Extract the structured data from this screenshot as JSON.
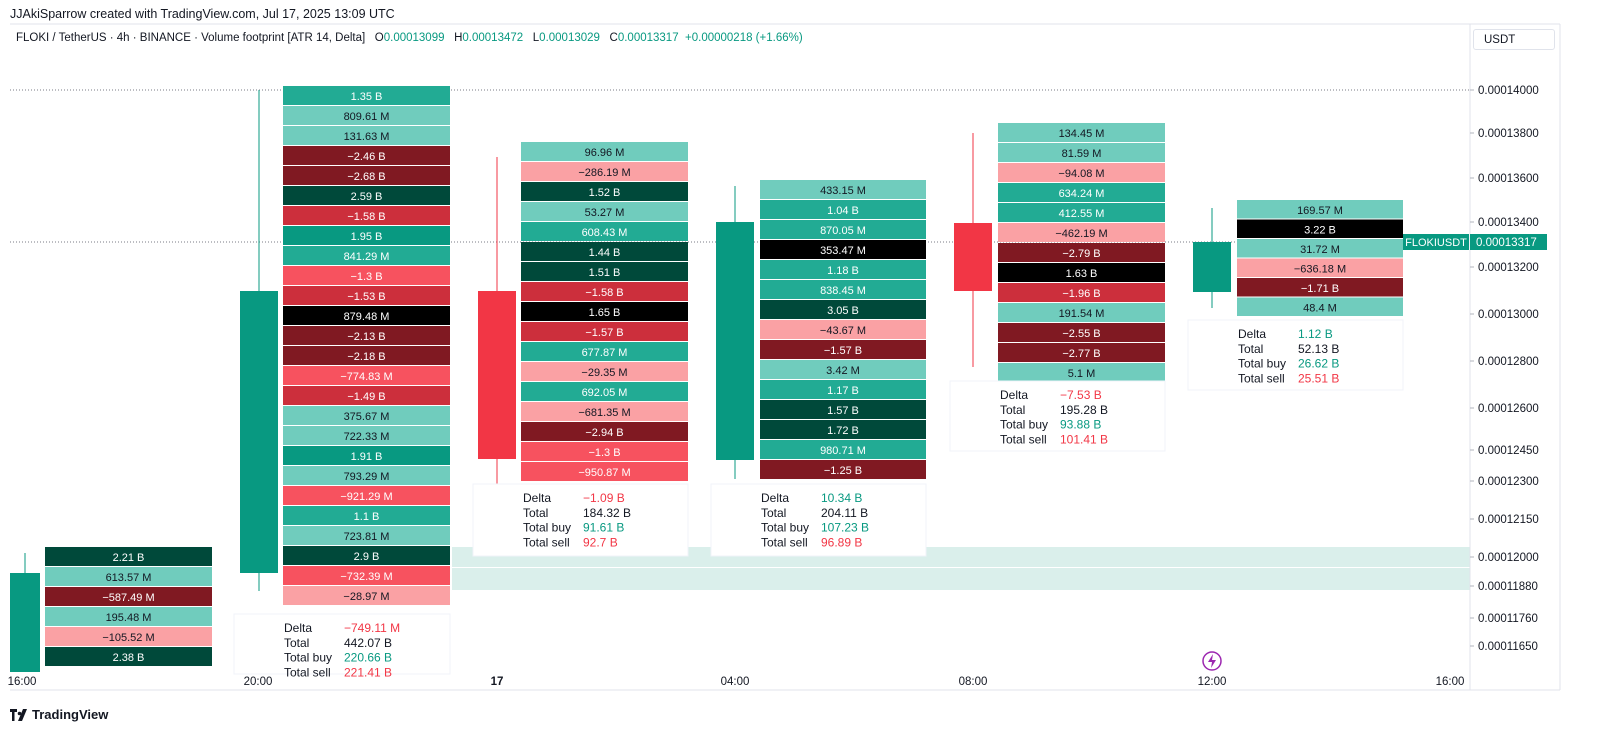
{
  "header": {
    "attribution": "JJAkiSparrow created with TradingView.com, Jul 17, 2025 13:09 UTC"
  },
  "legend": {
    "symbol": "FLOKI / TetherUS · 4h · BINANCE · Volume footprint [ATR 14, Delta]",
    "o_label": "O",
    "o": "0.00013099",
    "h_label": "H",
    "h": "0.00013472",
    "l_label": "L",
    "l": "0.00013029",
    "c_label": "C",
    "c": "0.00013317",
    "change": "+0.00000218 (+1.66%)"
  },
  "unit_selector": "USDT",
  "footer": {
    "logo": "TradingView"
  },
  "colors": {
    "up": "#089981",
    "down": "#f23645",
    "pos3": "#00493a",
    "pos2": "#089981",
    "pos1": "#22ab94",
    "pos0": "#70ccbd",
    "neg3": "#801922",
    "neg2": "#cc2f3c",
    "neg1": "#f7525f",
    "neg0": "#faa1a4",
    "poc": "#000000",
    "zone": "#d6ede9"
  },
  "chart_data": {
    "type": "footprint",
    "symbol": "FLOKIUSDT",
    "last_price": "0.00013317",
    "y_ticks": [
      "0.00014000",
      "0.00013800",
      "0.00013600",
      "0.00013400",
      "0.00013200",
      "0.00013000",
      "0.00012800",
      "0.00012600",
      "0.00012450",
      "0.00012300",
      "0.00012150",
      "0.00012000",
      "0.00011880",
      "0.00011760",
      "0.00011650"
    ],
    "x_ticks": [
      "16:00",
      "20:00",
      "17",
      "04:00",
      "08:00",
      "12:00",
      "16:00"
    ],
    "candles": [
      {
        "time": "16:00",
        "dir": "up"
      },
      {
        "time": "20:00",
        "dir": "up"
      },
      {
        "time": "00:00",
        "dir": "down"
      },
      {
        "time": "04:00",
        "dir": "up"
      },
      {
        "time": "08:00",
        "dir": "down"
      },
      {
        "time": "12:00",
        "dir": "up"
      }
    ],
    "footprints": [
      {
        "candle": "16:00",
        "rows": [
          [
            "2.21 B",
            "pos3"
          ],
          [
            "613.57 M",
            "pos0"
          ],
          [
            "−587.49 M",
            "neg3"
          ],
          [
            "195.48 M",
            "pos0"
          ],
          [
            "−105.52 M",
            "neg0"
          ],
          [
            "2.38 B",
            "pos3"
          ]
        ],
        "summary": null
      },
      {
        "candle": "20:00",
        "rows": [
          [
            "1.35 B",
            "pos1"
          ],
          [
            "809.61 M",
            "pos0"
          ],
          [
            "131.63 M",
            "pos0"
          ],
          [
            "−2.46 B",
            "neg3"
          ],
          [
            "−2.68 B",
            "neg3"
          ],
          [
            "2.59 B",
            "pos3"
          ],
          [
            "−1.58 B",
            "neg2"
          ],
          [
            "1.95 B",
            "pos2"
          ],
          [
            "841.29 M",
            "pos1"
          ],
          [
            "−1.3 B",
            "neg1"
          ],
          [
            "−1.53 B",
            "neg2"
          ],
          [
            "879.48 M",
            "poc"
          ],
          [
            "−2.13 B",
            "neg3"
          ],
          [
            "−2.18 B",
            "neg3"
          ],
          [
            "−774.83 M",
            "neg1"
          ],
          [
            "−1.49 B",
            "neg2"
          ],
          [
            "375.67 M",
            "pos0"
          ],
          [
            "722.33 M",
            "pos0"
          ],
          [
            "1.91 B",
            "pos2"
          ],
          [
            "793.29 M",
            "pos0"
          ],
          [
            "−921.29 M",
            "neg1"
          ],
          [
            "1.1 B",
            "pos1"
          ],
          [
            "723.81 M",
            "pos0"
          ],
          [
            "2.9 B",
            "pos3"
          ],
          [
            "−732.39 M",
            "neg1"
          ],
          [
            "−28.97 M",
            "neg0"
          ]
        ],
        "summary": {
          "delta": "−749.11 M",
          "total": "442.07 B",
          "buy": "220.66 B",
          "sell": "221.41 B"
        }
      },
      {
        "candle": "00:00",
        "rows": [
          [
            "96.96 M",
            "pos0"
          ],
          [
            "−286.19 M",
            "neg0"
          ],
          [
            "1.52 B",
            "pos3"
          ],
          [
            "53.27 M",
            "pos0"
          ],
          [
            "608.43 M",
            "pos1"
          ],
          [
            "1.44 B",
            "pos3"
          ],
          [
            "1.51 B",
            "pos3"
          ],
          [
            "−1.58 B",
            "neg2"
          ],
          [
            "1.65 B",
            "poc"
          ],
          [
            "−1.57 B",
            "neg2"
          ],
          [
            "677.87 M",
            "pos1"
          ],
          [
            "−29.35 M",
            "neg0"
          ],
          [
            "692.05 M",
            "pos1"
          ],
          [
            "−681.35 M",
            "neg0"
          ],
          [
            "−2.94 B",
            "neg3"
          ],
          [
            "−1.3 B",
            "neg1"
          ],
          [
            "−950.87 M",
            "neg1"
          ]
        ],
        "summary": {
          "delta": "−1.09 B",
          "total": "184.32 B",
          "buy": "91.61 B",
          "sell": "92.7 B"
        }
      },
      {
        "candle": "04:00",
        "rows": [
          [
            "433.15 M",
            "pos0"
          ],
          [
            "1.04 B",
            "pos1"
          ],
          [
            "870.05 M",
            "pos1"
          ],
          [
            "353.47 M",
            "poc"
          ],
          [
            "1.18 B",
            "pos1"
          ],
          [
            "838.45 M",
            "pos1"
          ],
          [
            "3.05 B",
            "pos3"
          ],
          [
            "−43.67 M",
            "neg0"
          ],
          [
            "−1.57 B",
            "neg3"
          ],
          [
            "3.42 M",
            "pos0"
          ],
          [
            "1.17 B",
            "pos1"
          ],
          [
            "1.57 B",
            "pos3"
          ],
          [
            "1.72 B",
            "pos3"
          ],
          [
            "980.71 M",
            "pos1"
          ],
          [
            "−1.25 B",
            "neg3"
          ]
        ],
        "summary": {
          "delta": "10.34 B",
          "total": "204.11 B",
          "buy": "107.23 B",
          "sell": "96.89 B"
        }
      },
      {
        "candle": "08:00",
        "rows": [
          [
            "134.45 M",
            "pos0"
          ],
          [
            "81.59 M",
            "pos0"
          ],
          [
            "−94.08 M",
            "neg0"
          ],
          [
            "634.24 M",
            "pos1"
          ],
          [
            "412.55 M",
            "pos1"
          ],
          [
            "−462.19 M",
            "neg0"
          ],
          [
            "−2.79 B",
            "neg3"
          ],
          [
            "1.63 B",
            "poc"
          ],
          [
            "−1.96 B",
            "neg2"
          ],
          [
            "191.54 M",
            "pos0"
          ],
          [
            "−2.55 B",
            "neg3"
          ],
          [
            "−2.77 B",
            "neg3"
          ],
          [
            "5.1 M",
            "pos0"
          ]
        ],
        "summary": {
          "delta": "−7.53 B",
          "total": "195.28 B",
          "buy": "93.88 B",
          "sell": "101.41 B"
        }
      },
      {
        "candle": "12:00",
        "rows": [
          [
            "169.57 M",
            "pos0"
          ],
          [
            "3.22 B",
            "poc"
          ],
          [
            "31.72 M",
            "pos0"
          ],
          [
            "−636.18 M",
            "neg0"
          ],
          [
            "−1.71 B",
            "neg3"
          ],
          [
            "48.4 M",
            "pos0"
          ]
        ],
        "summary": {
          "delta": "1.12 B",
          "total": "52.13 B",
          "buy": "26.62 B",
          "sell": "25.51 B"
        }
      }
    ],
    "summary_labels": {
      "delta": "Delta",
      "total": "Total",
      "buy": "Total buy",
      "sell": "Total sell"
    }
  }
}
